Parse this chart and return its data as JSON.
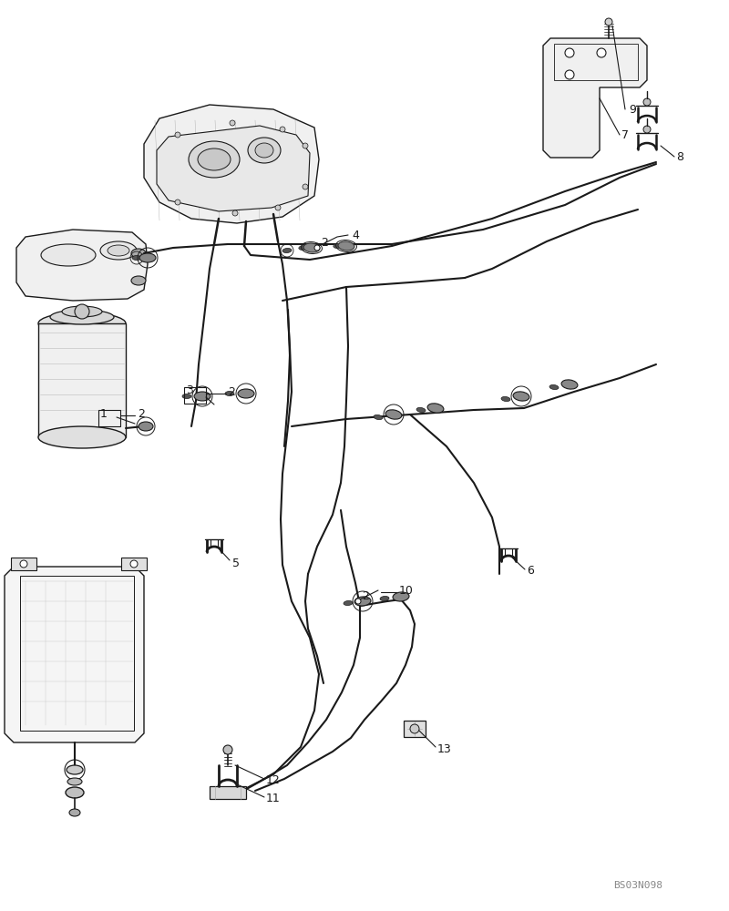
{
  "bg_color": "#ffffff",
  "line_color": "#1a1a1a",
  "watermark": "BS03N098",
  "fig_width": 8.0,
  "fig_height": 10.0
}
